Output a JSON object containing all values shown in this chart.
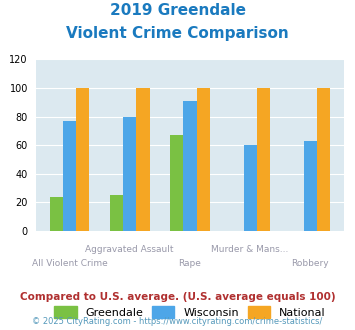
{
  "title_line1": "2019 Greendale",
  "title_line2": "Violent Crime Comparison",
  "title_color": "#1a7abf",
  "categories": [
    "All Violent Crime",
    "Aggravated Assault",
    "Rape",
    "Murder & Mans...",
    "Robbery"
  ],
  "greendale": [
    24,
    25,
    67,
    0,
    0
  ],
  "wisconsin": [
    77,
    80,
    91,
    60,
    63
  ],
  "national": [
    100,
    100,
    100,
    100,
    100
  ],
  "greendale_color": "#7ac143",
  "wisconsin_color": "#4da6e8",
  "national_color": "#f5a623",
  "ylim": [
    0,
    120
  ],
  "yticks": [
    0,
    20,
    40,
    60,
    80,
    100,
    120
  ],
  "plot_bg": "#dce9f0",
  "footer_text": "Compared to U.S. average. (U.S. average equals 100)",
  "footer_color": "#b03030",
  "credit_text": "© 2025 CityRating.com - https://www.cityrating.com/crime-statistics/",
  "credit_color": "#5599bb",
  "bar_width": 0.22,
  "label_color": "#9999aa",
  "top_labels": {
    "1": "Aggravated Assault",
    "3": "Murder & Mans..."
  },
  "bot_labels": {
    "0": "All Violent Crime",
    "2": "Rape",
    "4": "Robbery"
  }
}
